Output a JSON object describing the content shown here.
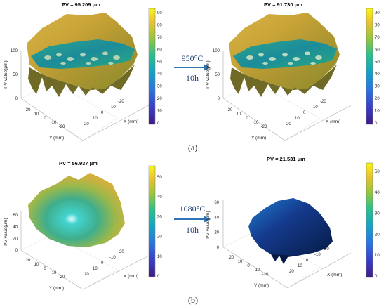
{
  "colors": {
    "arrow": "#2e75b6",
    "process_text": "#1f3f73"
  },
  "figure": {
    "panel_a": {
      "label": "(a)",
      "process": {
        "temperature": "950°C",
        "time": "10h"
      },
      "plots": [
        {
          "title": "PV = 95.209 μm",
          "zlabel": "PV value(μm)",
          "xlabel": "X (mm)",
          "ylabel": "Y (mm)",
          "z_ticks": [
            "0",
            "50",
            "100"
          ],
          "y_ticks": [
            "20",
            "10",
            "0",
            "-10",
            "-20"
          ],
          "x_ticks": [
            "20",
            "10",
            "0",
            "-10",
            "-20"
          ],
          "colorbar_ticks": [
            "90",
            "80",
            "70",
            "60",
            "50",
            "40",
            "30",
            "20",
            "10",
            "0"
          ]
        },
        {
          "title": "PV = 91.730 μm",
          "zlabel": "PV value(μm)",
          "xlabel": "X (mm)",
          "ylabel": "Y (mm)",
          "z_ticks": [
            "0",
            "50",
            "100"
          ],
          "y_ticks": [
            "20",
            "10",
            "0",
            "-10",
            "-20"
          ],
          "x_ticks": [
            "20",
            "10",
            "0",
            "-10",
            "-20"
          ],
          "colorbar_ticks": [
            "90",
            "80",
            "70",
            "60",
            "50",
            "40",
            "30",
            "20",
            "10",
            "0"
          ]
        }
      ]
    },
    "panel_b": {
      "label": "(b)",
      "process": {
        "temperature": "1080°C",
        "time": "10h"
      },
      "plots": [
        {
          "title": "PV = 56.937 μm",
          "zlabel": "PV value(μm)",
          "xlabel": "X (mm)",
          "ylabel": "Y (mm)",
          "z_ticks": [
            "0",
            "20",
            "40",
            "60"
          ],
          "y_ticks": [
            "20",
            "10",
            "0",
            "-10",
            "-20"
          ],
          "x_ticks": [
            "20",
            "10",
            "0",
            "-10",
            "-20"
          ],
          "colorbar_ticks": [
            "50",
            "40",
            "30",
            "20",
            "10",
            "0"
          ]
        },
        {
          "title": "PV = 21.531 μm",
          "zlabel": "PV value(μm)",
          "xlabel": "X (mm)",
          "ylabel": "Y (mm)",
          "z_ticks": [
            "0",
            "20",
            "40",
            "60"
          ],
          "y_ticks": [
            "20",
            "10",
            "0",
            "-10",
            "-20"
          ],
          "x_ticks": [
            "20",
            "10",
            "0",
            "-10",
            "-20"
          ],
          "colorbar_ticks": [
            "50",
            "40",
            "30",
            "20",
            "10",
            "0"
          ]
        }
      ]
    }
  }
}
